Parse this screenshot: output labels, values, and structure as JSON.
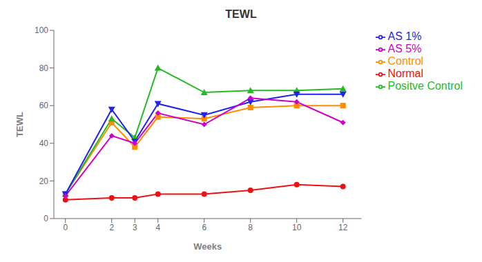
{
  "chart_data": {
    "type": "line",
    "title": "TEWL",
    "x_label": "Weeks",
    "y_label": "TEWL",
    "x": [
      0,
      2,
      3,
      4,
      6,
      8,
      10,
      12
    ],
    "series": [
      {
        "name": "Normal",
        "color": "#EE1111",
        "marker": "circle",
        "line_style": "solid",
        "values": [
          10,
          11,
          11,
          13,
          13,
          15,
          18,
          17
        ]
      },
      {
        "name": "Control",
        "color": "#FF8C00",
        "marker": "square",
        "line_style": "solid",
        "values": [
          13,
          51,
          38,
          54,
          53,
          59,
          60,
          60
        ]
      },
      {
        "name": "Positve Control",
        "color": "#22BB22",
        "marker": "triangle",
        "line_style": "solid",
        "values": [
          13,
          53,
          43,
          80,
          67,
          68,
          68,
          69
        ]
      },
      {
        "name": "AS 1%",
        "color": "#2222EE",
        "marker": "triangle-down",
        "line_style": "solid",
        "values": [
          13,
          58,
          41,
          61,
          55,
          62,
          66,
          66
        ]
      },
      {
        "name": "AS 5%",
        "color": "#CC00CC",
        "marker": "diamond",
        "line_style": "solid",
        "values": [
          12,
          44,
          40,
          56,
          50,
          64,
          62,
          51
        ]
      }
    ],
    "xlim": [
      -0.5,
      12.8
    ],
    "xticks": [
      0,
      2,
      3,
      4,
      6,
      8,
      10,
      12
    ],
    "ylim": [
      0,
      100
    ],
    "yticks": [
      0,
      20,
      40,
      60,
      80,
      100
    ],
    "grid": false,
    "legend": "right"
  }
}
